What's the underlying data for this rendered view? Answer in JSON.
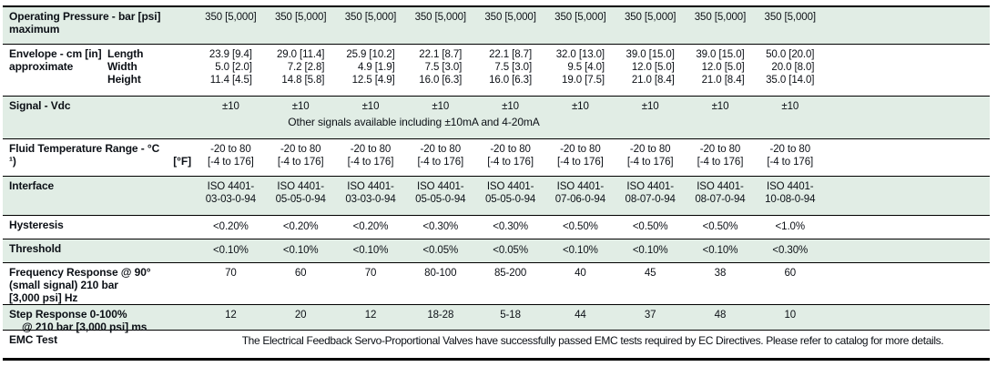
{
  "colors": {
    "row_green": "#e1ede5",
    "text": "#0c1016"
  },
  "rows": {
    "pressure": {
      "label1": "Operating Pressure - bar [psi]",
      "label2": "maximum",
      "values": [
        "350 [5,000]",
        "350 [5,000]",
        "350 [5,000]",
        "350 [5,000]",
        "350 [5,000]",
        "350 [5,000]",
        "350 [5,000]",
        "350 [5,000]",
        "350 [5,000]"
      ]
    },
    "envelope": {
      "label1": "Envelope - cm [in]",
      "label2": "approximate",
      "sub1": "Length",
      "sub2": "Width",
      "sub3": "Height",
      "cols": [
        {
          "length": "23.9 [9.4]",
          "width": "5.0 [2.0]",
          "height": "11.4 [4.5]"
        },
        {
          "length": "29.0 [11.4]",
          "width": "7.2 [2.8]",
          "height": "14.8 [5.8]"
        },
        {
          "length": "25.9 [10.2]",
          "width": "4.9 [1.9]",
          "height": "12.5 [4.9]"
        },
        {
          "length": "22.1 [8.7]",
          "width": "7.5 [3.0]",
          "height": "16.0 [6.3]"
        },
        {
          "length": "22.1 [8.7]",
          "width": "7.5 [3.0]",
          "height": "16.0 [6.3]"
        },
        {
          "length": "32.0 [13.0]",
          "width": "9.5 [4.0]",
          "height": "19.0 [7.5]"
        },
        {
          "length": "39.0 [15.0]",
          "width": "12.0 [5.0]",
          "height": "21.0 [8.4]"
        },
        {
          "length": "39.0 [15.0]",
          "width": "12.0 [5.0]",
          "height": "21.0 [8.4]"
        },
        {
          "length": "50.0 [20.0]",
          "width": "20.0 [8.0]",
          "height": "35.0 [14.0]"
        }
      ]
    },
    "signal": {
      "label": "Signal - Vdc",
      "values": [
        "±10",
        "±10",
        "±10",
        "±10",
        "±10",
        "±10",
        "±10",
        "±10",
        "±10"
      ],
      "note": "Other signals available including ±10mA and 4-20mA"
    },
    "fluid": {
      "label1": "Fluid Temperature Range - °C",
      "footnote": "¹)",
      "label2": "[°F]",
      "cols": [
        {
          "c": "-20 to 80",
          "f": "[-4 to 176]"
        },
        {
          "c": "-20 to 80",
          "f": "[-4 to 176]"
        },
        {
          "c": "-20 to 80",
          "f": "[-4 to 176]"
        },
        {
          "c": "-20 to 80",
          "f": "[-4 to 176]"
        },
        {
          "c": "-20 to 80",
          "f": "[-4 to 176]"
        },
        {
          "c": "-20 to 80",
          "f": "[-4 to 176]"
        },
        {
          "c": "-20 to 80",
          "f": "[-4 to 176]"
        },
        {
          "c": "-20 to 80",
          "f": "[-4 to 176]"
        },
        {
          "c": "-20 to 80",
          "f": "[-4 to 176]"
        }
      ]
    },
    "interface": {
      "label": "Interface",
      "cols": [
        {
          "line1": "ISO 4401-",
          "line2": "03-03-0-94"
        },
        {
          "line1": "ISO 4401-",
          "line2": "05-05-0-94"
        },
        {
          "line1": "ISO 4401-",
          "line2": "03-03-0-94"
        },
        {
          "line1": "ISO 4401-",
          "line2": "05-05-0-94"
        },
        {
          "line1": "ISO 4401-",
          "line2": "05-05-0-94"
        },
        {
          "line1": "ISO 4401-",
          "line2": "07-06-0-94"
        },
        {
          "line1": "ISO 4401-",
          "line2": "08-07-0-94"
        },
        {
          "line1": "ISO 4401-",
          "line2": "08-07-0-94"
        },
        {
          "line1": "ISO 4401-",
          "line2": "10-08-0-94"
        }
      ]
    },
    "hysteresis": {
      "label": "Hysteresis",
      "values": [
        "<0.20%",
        "<0.20%",
        "<0.20%",
        "<0.30%",
        "<0.30%",
        "<0.50%",
        "<0.50%",
        "<0.50%",
        "<1.0%"
      ]
    },
    "threshold": {
      "label": "Threshold",
      "values": [
        "<0.10%",
        "<0.10%",
        "<0.10%",
        "<0.05%",
        "<0.05%",
        "<0.10%",
        "<0.10%",
        "<0.10%",
        "<0.30%"
      ]
    },
    "freq": {
      "label1": "Frequency Response @ 90°",
      "label2": "(small signal) 210 bar",
      "label3": "[3,000 psi] Hz",
      "values": [
        "70",
        "60",
        "70",
        "80-100",
        "85-200",
        "40",
        "45",
        "38",
        "60"
      ]
    },
    "step": {
      "label1": "Step Response 0-100%",
      "label2": "@ 210 bar [3,000 psi] ms",
      "values": [
        "12",
        "20",
        "12",
        "18-28",
        "5-18",
        "44",
        "37",
        "48",
        "10"
      ]
    },
    "emc": {
      "label": "EMC Test",
      "text": "The Electrical Feedback Servo-Proportional Valves have successfully passed EMC tests required by EC Directives. Please refer to catalog for more details."
    }
  }
}
